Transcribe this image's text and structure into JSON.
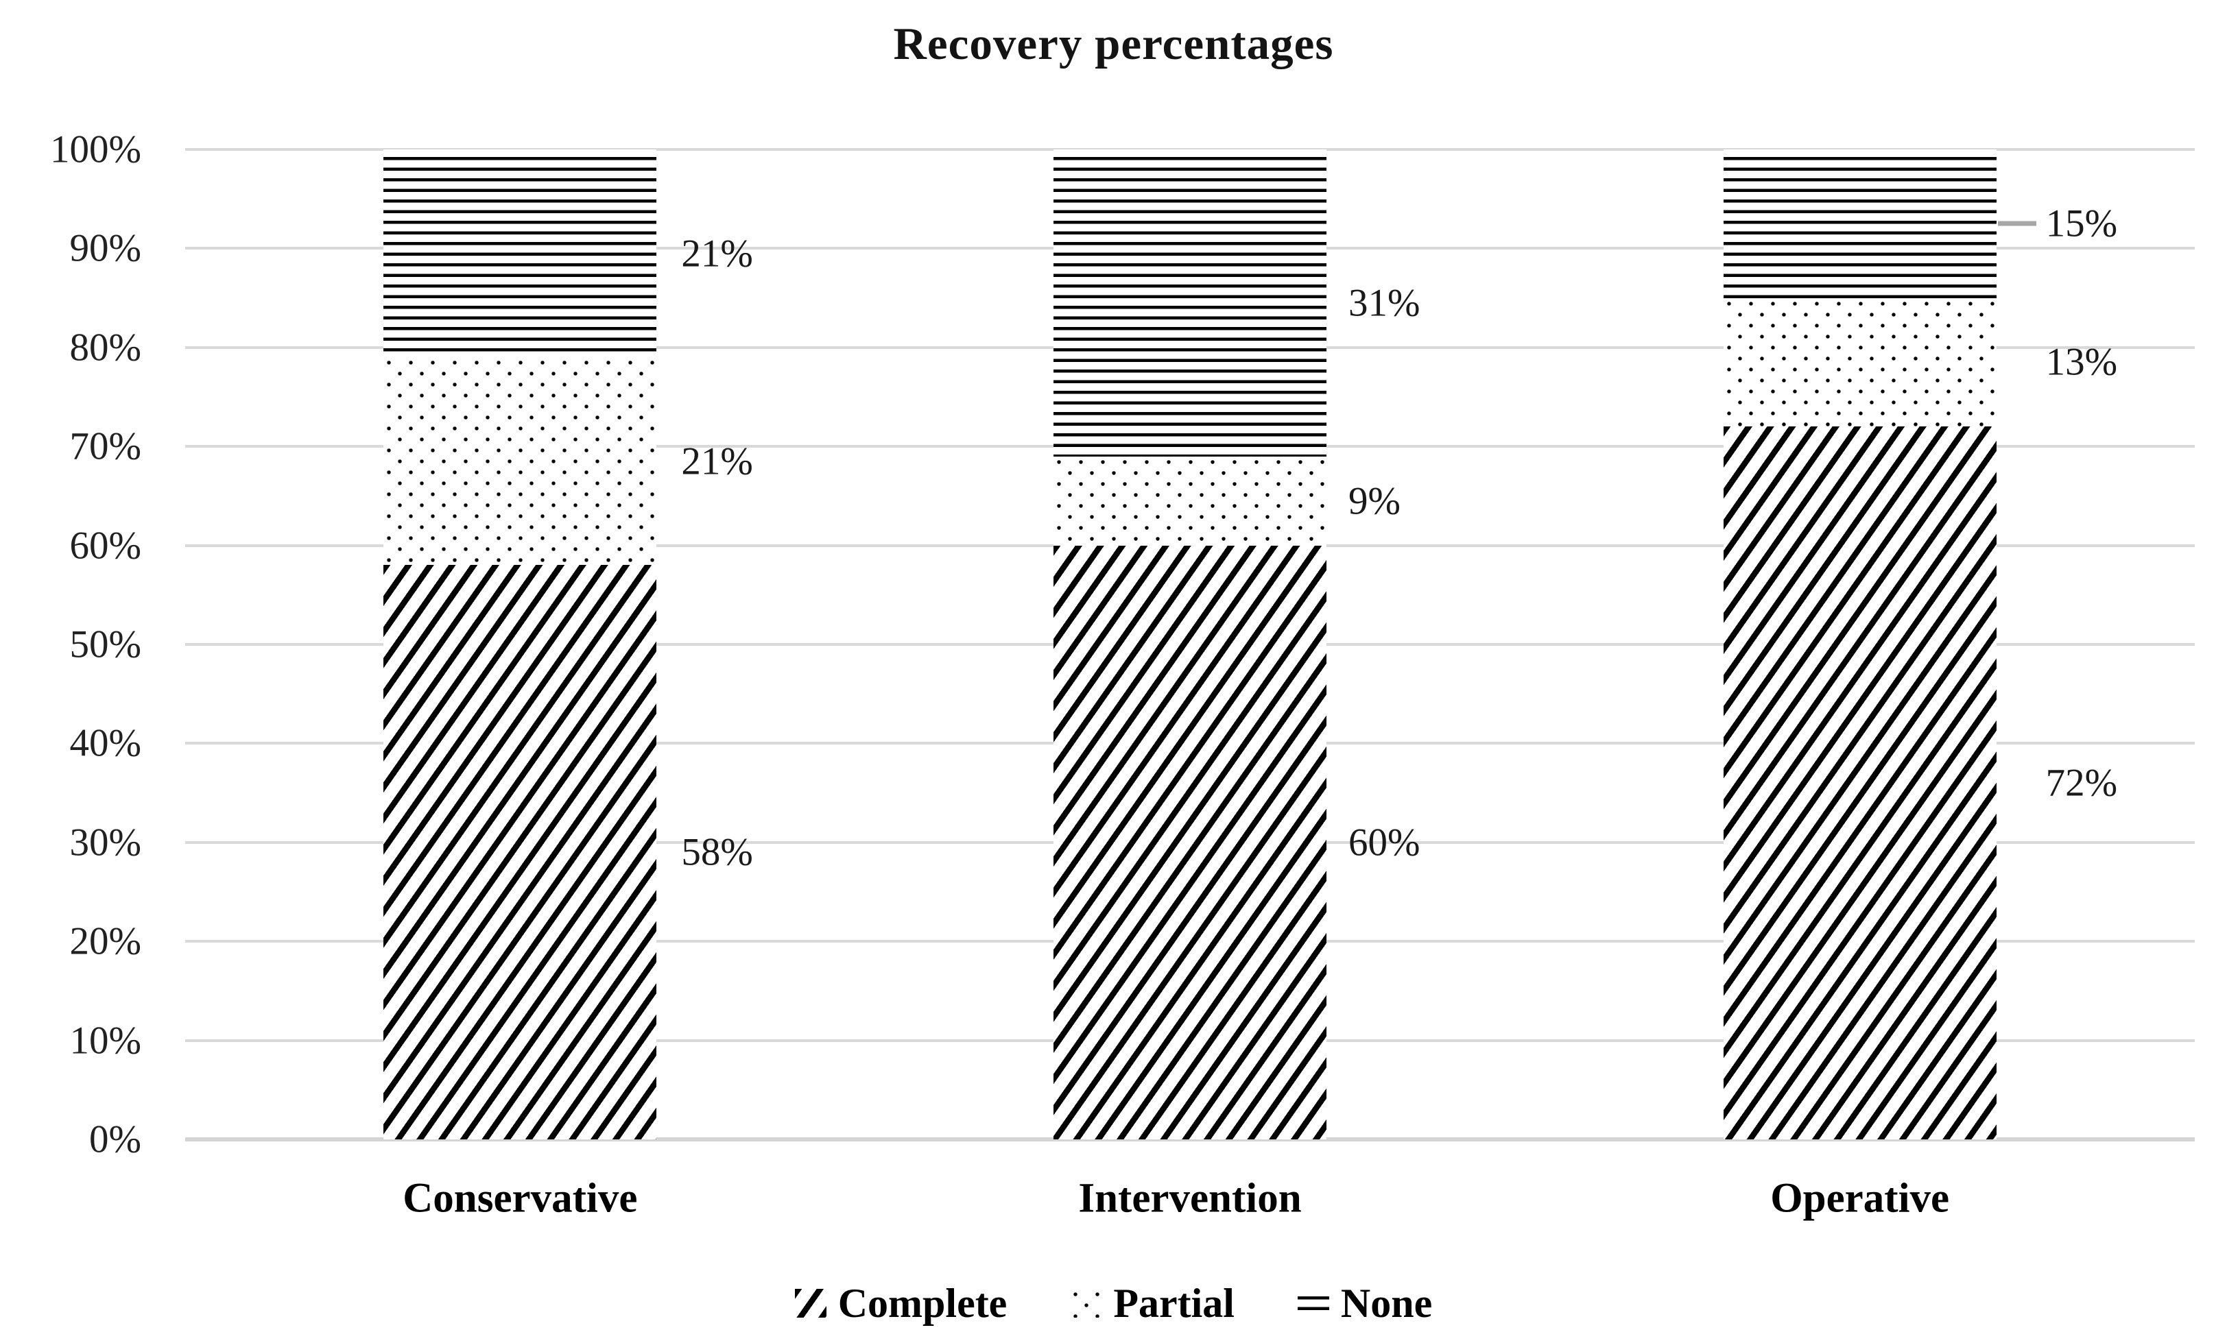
{
  "figure": {
    "title": "Recovery percentages"
  },
  "chart_data": {
    "type": "bar",
    "stacked": true,
    "percent_stacked": true,
    "title": "Recovery percentages",
    "xlabel": "",
    "ylabel": "",
    "categories": [
      "Conservative",
      "Intervention",
      "Operative"
    ],
    "series": [
      {
        "name": "Complete",
        "pattern": "diagonal-stripes",
        "values": [
          58,
          60,
          72
        ],
        "labels": [
          "58%",
          "60%",
          "72%"
        ]
      },
      {
        "name": "Partial",
        "pattern": "dots",
        "values": [
          21,
          9,
          13
        ],
        "labels": [
          "21%",
          "9%",
          "13%"
        ]
      },
      {
        "name": "None",
        "pattern": "horizontal-lines",
        "values": [
          21,
          31,
          15
        ],
        "labels": [
          "21%",
          "31%",
          "15%"
        ]
      }
    ],
    "y_axis": {
      "min": 0,
      "max": 100,
      "step": 10,
      "tick_labels": [
        "0%",
        "10%",
        "20%",
        "30%",
        "40%",
        "50%",
        "60%",
        "70%",
        "80%",
        "90%",
        "100%"
      ]
    },
    "grid": true,
    "legend": {
      "position": "bottom",
      "entries": [
        {
          "label": "Complete",
          "pattern": "diagonal-stripes"
        },
        {
          "label": "Partial",
          "pattern": "dots"
        },
        {
          "label": "None",
          "pattern": "horizontal-lines"
        }
      ]
    },
    "colors": {
      "pattern_ink": "#000000",
      "bar_background": "#ffffff",
      "gridline": "#d9d9d9",
      "leader_line": "#a6a6a6",
      "text": "#1a1a1a"
    },
    "leader_line": {
      "category": "Operative",
      "series": "None",
      "color": "#a6a6a6"
    }
  }
}
